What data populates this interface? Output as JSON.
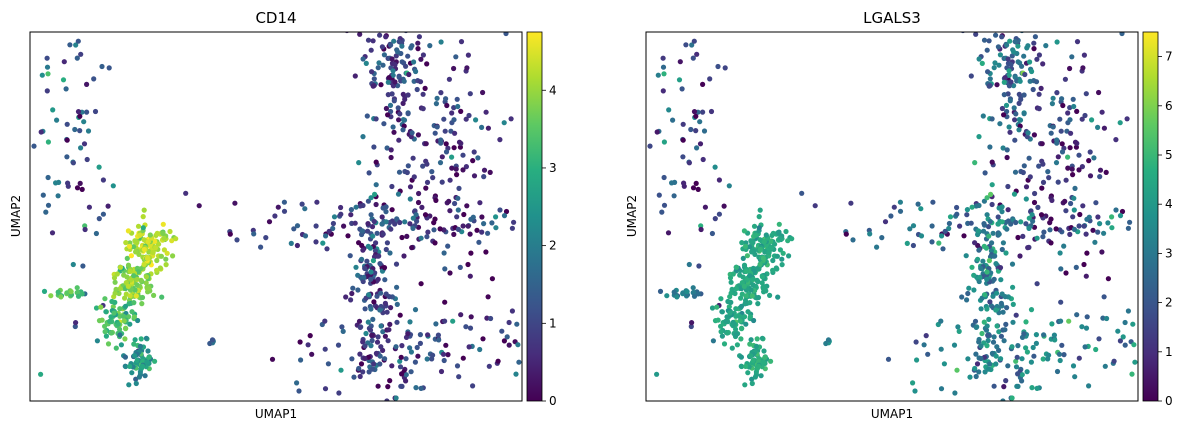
{
  "chart_data": [
    {
      "type": "scatter",
      "title": "CD14",
      "xlabel": "UMAP1",
      "ylabel": "UMAP2",
      "x_ticks": false,
      "y_ticks": false,
      "grid": false,
      "colorbar": {
        "cmap": "viridis",
        "vmin": 0,
        "vmax": 4.75,
        "ticks": [
          "0",
          "1",
          "2",
          "3",
          "4"
        ],
        "tick_values": [
          0,
          1,
          2,
          3,
          4
        ]
      },
      "clusters": [
        {
          "cx": 0.095,
          "cy": 0.7,
          "rx": 0.12,
          "ry": 0.65,
          "n": 80,
          "mean": 1.3,
          "sd": 0.9
        },
        {
          "cx": 0.84,
          "cy": 0.68,
          "rx": 0.18,
          "ry": 0.5,
          "n": 160,
          "mean": 0.9,
          "sd": 0.7
        },
        {
          "cx": 0.74,
          "cy": 0.92,
          "rx": 0.1,
          "ry": 0.35,
          "n": 150,
          "mean": 0.9,
          "sd": 0.7
        },
        {
          "cx": 0.73,
          "cy": 0.48,
          "rx": 0.55,
          "ry": 0.12,
          "n": 140,
          "mean": 0.9,
          "sd": 0.7
        },
        {
          "cx": 0.7,
          "cy": 0.3,
          "rx": 0.06,
          "ry": 0.38,
          "n": 160,
          "mean": 1.0,
          "sd": 0.7
        },
        {
          "cx": 0.78,
          "cy": 0.14,
          "rx": 0.35,
          "ry": 0.18,
          "n": 140,
          "mean": 0.9,
          "sd": 0.7
        },
        {
          "cx": 0.24,
          "cy": 0.42,
          "rx": 0.065,
          "ry": 0.1,
          "n": 130,
          "mean": 4.2,
          "sd": 0.35
        },
        {
          "cx": 0.21,
          "cy": 0.32,
          "rx": 0.065,
          "ry": 0.09,
          "n": 110,
          "mean": 3.9,
          "sd": 0.35
        },
        {
          "cx": 0.18,
          "cy": 0.22,
          "rx": 0.055,
          "ry": 0.07,
          "n": 70,
          "mean": 3.4,
          "sd": 0.4
        },
        {
          "cx": 0.22,
          "cy": 0.11,
          "rx": 0.045,
          "ry": 0.08,
          "n": 70,
          "mean": 2.4,
          "sd": 0.5
        },
        {
          "cx": 0.075,
          "cy": 0.29,
          "rx": 0.05,
          "ry": 0.025,
          "n": 20,
          "mean": 3.5,
          "sd": 0.4
        },
        {
          "cx": 0.37,
          "cy": 0.16,
          "rx": 0.008,
          "ry": 0.01,
          "n": 6,
          "mean": 1.2,
          "sd": 0.6
        }
      ]
    },
    {
      "type": "scatter",
      "title": "LGALS3",
      "xlabel": "UMAP1",
      "ylabel": "UMAP2",
      "x_ticks": false,
      "y_ticks": false,
      "grid": false,
      "colorbar": {
        "cmap": "viridis",
        "vmin": 0,
        "vmax": 7.5,
        "ticks": [
          "0",
          "1",
          "2",
          "3",
          "4",
          "5",
          "6",
          "7"
        ],
        "tick_values": [
          0,
          1,
          2,
          3,
          4,
          5,
          6,
          7
        ]
      },
      "clusters": [
        {
          "cx": 0.095,
          "cy": 0.7,
          "rx": 0.12,
          "ry": 0.65,
          "n": 80,
          "mean": 1.6,
          "sd": 1.4
        },
        {
          "cx": 0.84,
          "cy": 0.68,
          "rx": 0.18,
          "ry": 0.5,
          "n": 160,
          "mean": 1.6,
          "sd": 1.4
        },
        {
          "cx": 0.74,
          "cy": 0.92,
          "rx": 0.1,
          "ry": 0.35,
          "n": 150,
          "mean": 2.4,
          "sd": 1.2
        },
        {
          "cx": 0.73,
          "cy": 0.48,
          "rx": 0.55,
          "ry": 0.12,
          "n": 140,
          "mean": 2.4,
          "sd": 1.2
        },
        {
          "cx": 0.7,
          "cy": 0.3,
          "rx": 0.06,
          "ry": 0.38,
          "n": 160,
          "mean": 3.2,
          "sd": 1.0
        },
        {
          "cx": 0.78,
          "cy": 0.14,
          "rx": 0.35,
          "ry": 0.18,
          "n": 140,
          "mean": 3.2,
          "sd": 1.0
        },
        {
          "cx": 0.24,
          "cy": 0.42,
          "rx": 0.065,
          "ry": 0.1,
          "n": 130,
          "mean": 4.5,
          "sd": 0.35
        },
        {
          "cx": 0.21,
          "cy": 0.32,
          "rx": 0.065,
          "ry": 0.09,
          "n": 110,
          "mean": 4.5,
          "sd": 0.35
        },
        {
          "cx": 0.18,
          "cy": 0.22,
          "rx": 0.055,
          "ry": 0.07,
          "n": 70,
          "mean": 4.5,
          "sd": 0.35
        },
        {
          "cx": 0.22,
          "cy": 0.11,
          "rx": 0.045,
          "ry": 0.08,
          "n": 70,
          "mean": 4.5,
          "sd": 0.35
        },
        {
          "cx": 0.075,
          "cy": 0.29,
          "rx": 0.05,
          "ry": 0.025,
          "n": 20,
          "mean": 3.2,
          "sd": 0.6
        },
        {
          "cx": 0.37,
          "cy": 0.16,
          "rx": 0.008,
          "ry": 0.01,
          "n": 6,
          "mean": 3.0,
          "sd": 0.8
        }
      ]
    }
  ]
}
